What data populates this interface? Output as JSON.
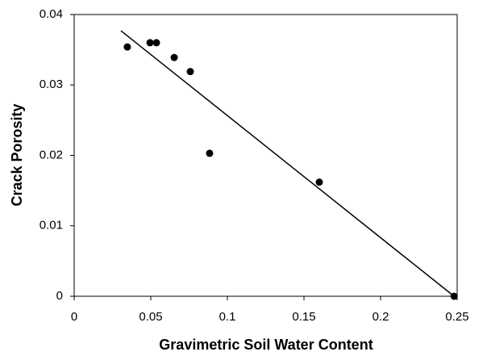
{
  "chart_data": {
    "type": "scatter",
    "xlabel": "Gravimetric Soil Water Content",
    "ylabel": "Crack Porosity",
    "xlim": [
      0,
      0.25
    ],
    "ylim": [
      0,
      0.04
    ],
    "xticks": [
      0,
      0.05,
      0.1,
      0.15,
      0.2,
      0.25
    ],
    "yticks": [
      0,
      0.01,
      0.02,
      0.03,
      0.04
    ],
    "series": [
      {
        "type": "points",
        "color": "#000000",
        "x": [
          0.0347,
          0.0495,
          0.0537,
          0.0653,
          0.0758,
          0.0884,
          0.16,
          0.248
        ],
        "values": [
          0.0354,
          0.036,
          0.036,
          0.0339,
          0.0319,
          0.0203,
          0.0162,
          0
        ]
      },
      {
        "type": "line",
        "color": "#000000",
        "x": [
          0.0305,
          0.248
        ],
        "values": [
          0.0377,
          0
        ]
      }
    ]
  }
}
